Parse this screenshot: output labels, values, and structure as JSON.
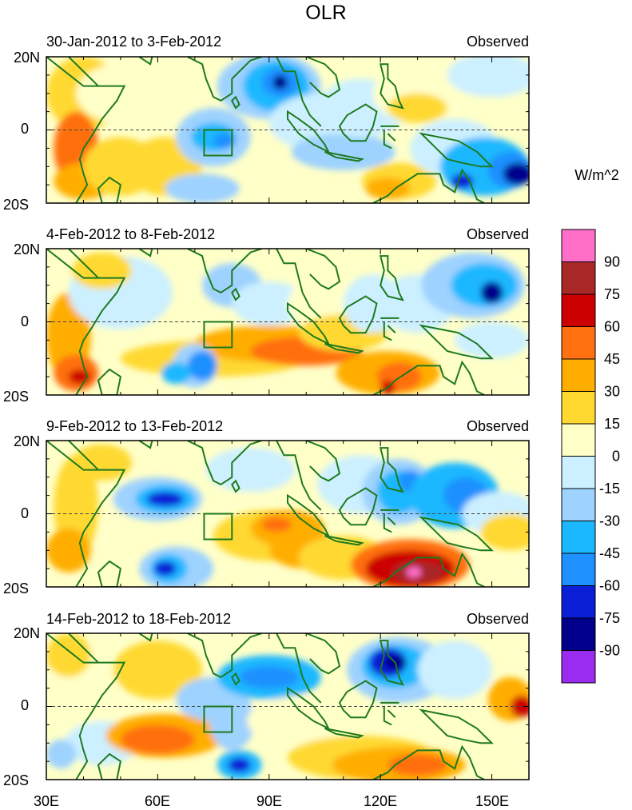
{
  "title": "OLR",
  "unit_label": "W/m^2",
  "panels": [
    {
      "date_range": "30-Jan-2012 to 3-Feb-2012",
      "tag": "Observed"
    },
    {
      "date_range": "4-Feb-2012 to 8-Feb-2012",
      "tag": "Observed"
    },
    {
      "date_range": "9-Feb-2012 to 13-Feb-2012",
      "tag": "Observed"
    },
    {
      "date_range": "14-Feb-2012 to 18-Feb-2012",
      "tag": "Observed"
    }
  ],
  "lat_labels": [
    "20N",
    "0",
    "20S"
  ],
  "lon_labels": [
    "30E",
    "60E",
    "90E",
    "120E",
    "150E"
  ],
  "colorbar": {
    "labels": [
      "90",
      "75",
      "60",
      "45",
      "30",
      "15",
      "0",
      "-15",
      "-30",
      "-45",
      "-60",
      "-75",
      "-90"
    ],
    "colors": [
      "#ff6ec7",
      "#a82828",
      "#cc0000",
      "#ff7010",
      "#ffae00",
      "#ffd930",
      "#ffffc8",
      "#ccf0ff",
      "#9ed2ff",
      "#1cb8ff",
      "#1e90ff",
      "#0a1ed6",
      "#00008c",
      "#9a2cf0"
    ]
  },
  "map_colors": {
    "coast": "#1e7a1e",
    "box": "#1e7a1e",
    "equator": "#444444"
  }
}
